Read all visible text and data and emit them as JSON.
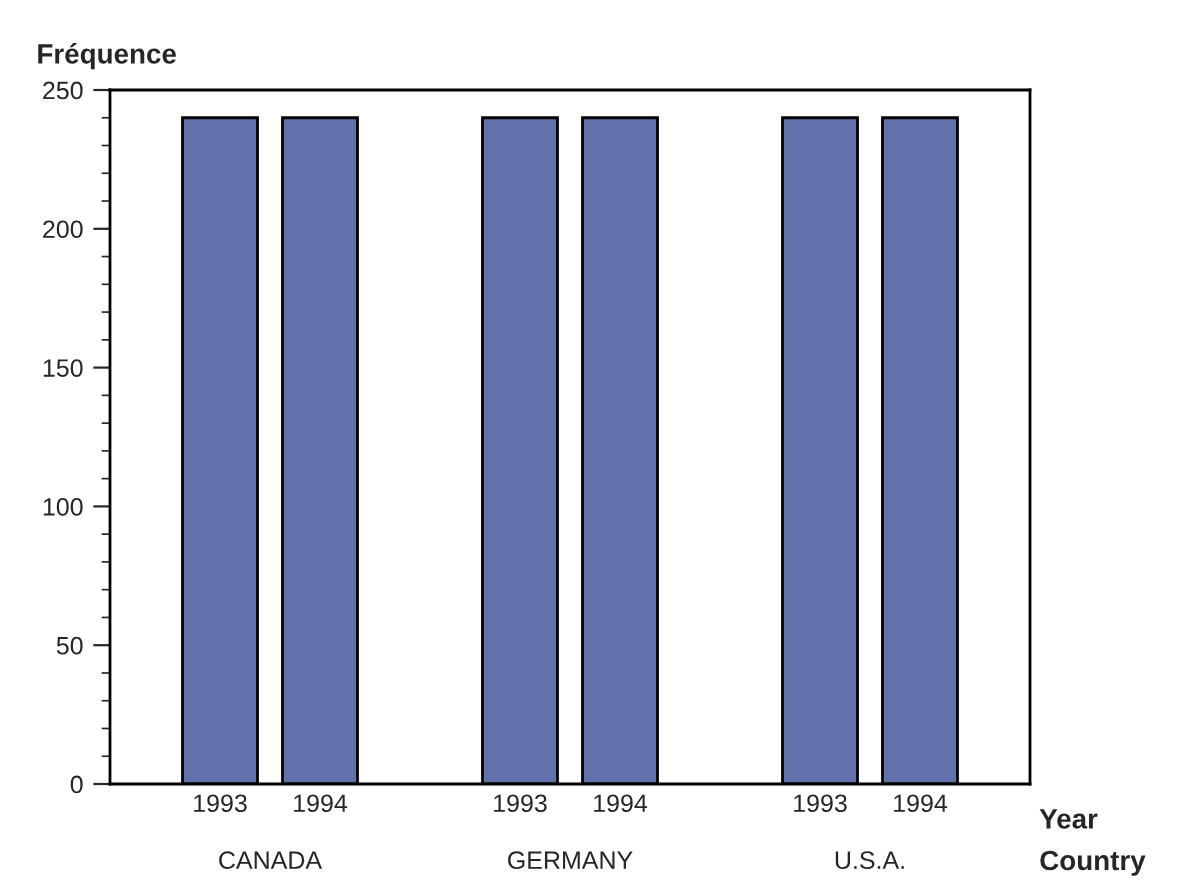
{
  "chart_data": {
    "type": "bar",
    "ylabel": "Fréquence",
    "xlabel": "Year",
    "categories": [
      "1993",
      "1994",
      "1993",
      "1994",
      "1993",
      "1994"
    ],
    "values": [
      240,
      240,
      240,
      240,
      240,
      240
    ],
    "color": "#6271ab",
    "ylim": [
      0,
      250
    ],
    "yticks": [
      0,
      50,
      100,
      150,
      200,
      250
    ],
    "grid": false,
    "legend": false,
    "annotations": [
      "CANADA",
      "GERMANY",
      "U.S.A.",
      "Country"
    ]
  }
}
